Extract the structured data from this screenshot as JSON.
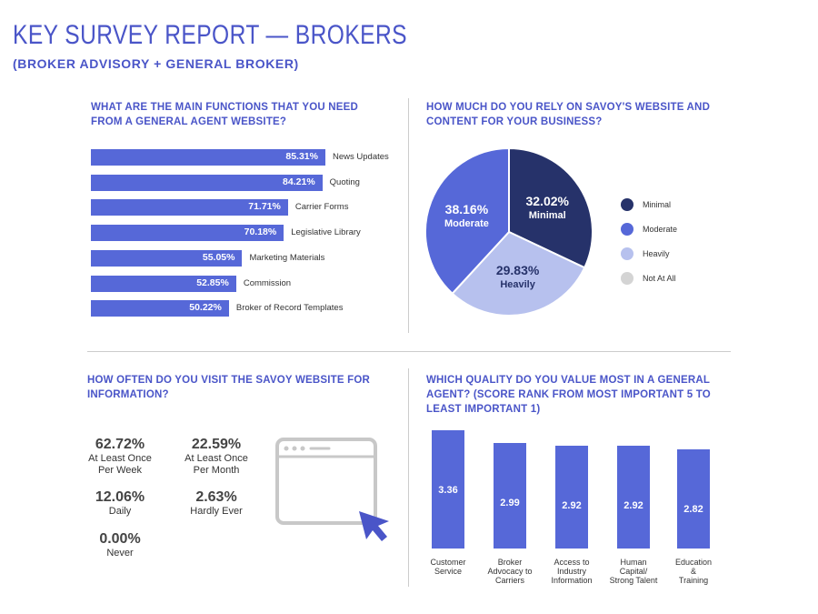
{
  "title": "KEY SURVEY REPORT — BROKERS",
  "subtitle": "(BROKER ADVISORY + GENERAL BROKER)",
  "colors": {
    "accent": "#4a55c8",
    "bar": "#5668d8",
    "minimal": "#26326a",
    "moderate": "#5668d8",
    "heavily": "#b7c1ee",
    "not_at_all": "#d4d4d4"
  },
  "chart_data": [
    {
      "type": "bar",
      "orientation": "horizontal",
      "title": "WHAT ARE THE MAIN FUNCTIONS THAT YOU NEED FROM A GENERAL AGENT WEBSITE?",
      "categories": [
        "News Updates",
        "Quoting",
        "Carrier Forms",
        "Legislative Library",
        "Marketing Materials",
        "Commission",
        "Broker of Record Templates"
      ],
      "values": [
        85.31,
        84.21,
        71.71,
        70.18,
        55.05,
        52.85,
        50.22
      ],
      "value_labels": [
        "85.31%",
        "84.21%",
        "71.71%",
        "70.18%",
        "55.05%",
        "52.85%",
        "50.22%"
      ]
    },
    {
      "type": "pie",
      "title": "HOW MUCH DO YOU RELY ON SAVOY'S WEBSITE AND CONTENT FOR YOUR BUSINESS?",
      "slices": [
        {
          "name": "Minimal",
          "value": 32.02,
          "label": "32.02%"
        },
        {
          "name": "Heavily",
          "value": 29.83,
          "label": "29.83%"
        },
        {
          "name": "Moderate",
          "value": 38.16,
          "label": "38.16%"
        },
        {
          "name": "Not At All",
          "value": 0,
          "label": ""
        }
      ],
      "legend": [
        "Minimal",
        "Moderate",
        "Heavily",
        "Not At All"
      ],
      "legend_placement": "right"
    },
    {
      "type": "table",
      "title": "HOW OFTEN DO YOU VISIT THE SAVOY WEBSITE FOR INFORMATION?",
      "items": [
        {
          "value": "62.72%",
          "label": [
            "At Least Once",
            "Per Week"
          ]
        },
        {
          "value": "22.59%",
          "label": [
            "At Least Once",
            "Per Month"
          ]
        },
        {
          "value": "12.06%",
          "label": [
            "Daily"
          ]
        },
        {
          "value": "2.63%",
          "label": [
            "Hardly Ever"
          ]
        },
        {
          "value": "0.00%",
          "label": [
            "Never"
          ]
        }
      ]
    },
    {
      "type": "bar",
      "orientation": "vertical",
      "title": "WHICH QUALITY DO YOU VALUE MOST IN A GENERAL AGENT? (SCORE RANK FROM MOST IMPORTANT 5 TO LEAST IMPORTANT 1)",
      "categories": [
        [
          "Customer",
          "Service"
        ],
        [
          "Broker",
          "Advocacy to",
          "Carriers"
        ],
        [
          "Access to",
          "Industry",
          "Information"
        ],
        [
          "Human",
          "Capital/",
          "Strong Talent"
        ],
        [
          "Education",
          "&",
          "Training"
        ]
      ],
      "values": [
        3.36,
        2.99,
        2.92,
        2.92,
        2.82
      ],
      "value_labels": [
        "3.36",
        "2.99",
        "2.92",
        "2.92",
        "2.82"
      ]
    }
  ]
}
